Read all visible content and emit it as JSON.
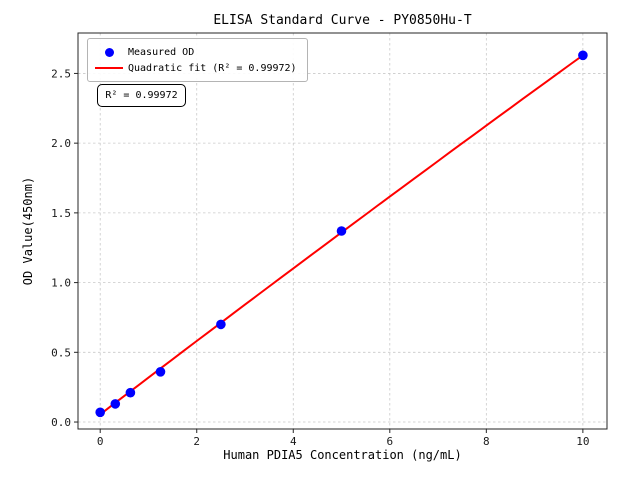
{
  "figure": {
    "title": "ELISA Standard Curve - PY0850Hu-T",
    "xlabel": "Human PDIA5 Concentration (ng/mL)",
    "ylabel": "OD Value(450nm)",
    "annotation_text": "R² = 0.99972",
    "legend": {
      "position": "upper left",
      "items": [
        {
          "marker": "dot",
          "label": "Measured OD"
        },
        {
          "marker": "line",
          "label": "Quadratic fit (R² = 0.99972)"
        }
      ]
    }
  },
  "chart_data": {
    "type": "scatter",
    "title": "ELISA Standard Curve - PY0850Hu-T",
    "xlabel": "Human PDIA5 Concentration (ng/mL)",
    "ylabel": "OD Value(450nm)",
    "xlim": [
      -0.46,
      10.5
    ],
    "ylim": [
      -0.05,
      2.79
    ],
    "x_ticks": [
      0,
      2,
      4,
      6,
      8,
      10
    ],
    "y_ticks": [
      0.0,
      0.5,
      1.0,
      1.5,
      2.0,
      2.5
    ],
    "grid": true,
    "grid_style": "dashed",
    "legend_position": "upper left",
    "series": [
      {
        "name": "Measured OD",
        "type": "scatter",
        "color": "#0000ff",
        "x": [
          0,
          0.313,
          0.625,
          1.25,
          2.5,
          5,
          10
        ],
        "y": [
          0.07,
          0.13,
          0.21,
          0.36,
          0.7,
          1.37,
          2.63
        ]
      },
      {
        "name": "Quadratic fit (R² = 0.99972)",
        "type": "line",
        "color": "#ff0000",
        "fit": "quadratic",
        "r_squared": 0.99972,
        "coefficients": [
          -0.0007,
          0.2645,
          0.055
        ],
        "x_range": [
          0,
          10
        ]
      }
    ]
  },
  "colors": {
    "point": "#0000ff",
    "fit_line": "#ff0000",
    "grid": "#c9c9c9",
    "axis": "#262626",
    "background": "#ffffff",
    "legend_border": "#b4b4b4"
  }
}
